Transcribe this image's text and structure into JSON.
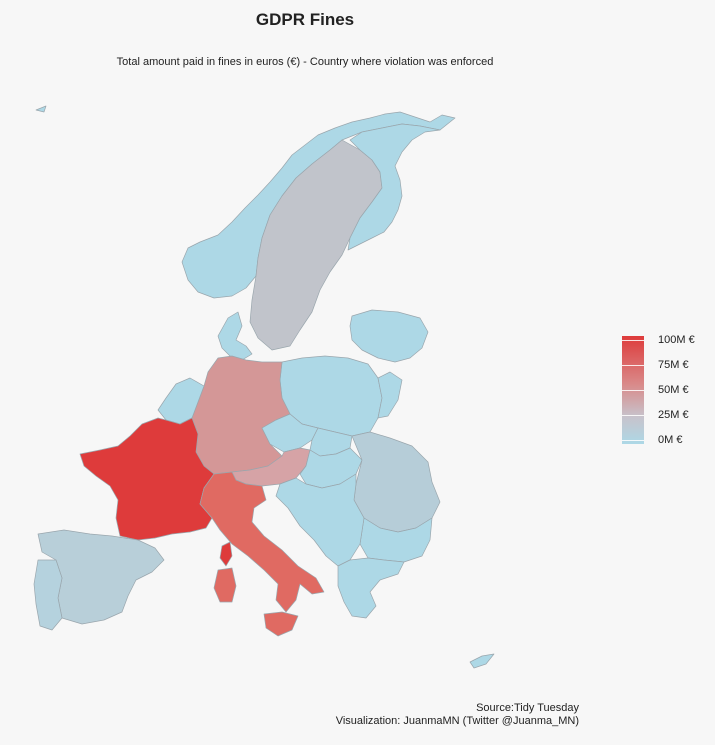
{
  "title": "GDPR Fines",
  "subtitle": "Total amount paid in fines in euros (€) - Country where violation was enforced",
  "colors": {
    "background": "#f7f7f7",
    "low": "#add8e6",
    "mid": "#c8c3cb",
    "high": "#de3b3b",
    "border": "#9aa6ad"
  },
  "legend": {
    "labels": [
      "100M €",
      "75M €",
      "50M €",
      "25M €",
      "0M €"
    ],
    "values": [
      100,
      75,
      50,
      25,
      0
    ],
    "unit": "M €"
  },
  "map_data": {
    "countries": [
      {
        "name": "France",
        "fill": "#de3b3b"
      },
      {
        "name": "Italy",
        "fill": "#e06a62"
      },
      {
        "name": "Germany",
        "fill": "#d49797"
      },
      {
        "name": "Austria",
        "fill": "#d6a3a6"
      },
      {
        "name": "Sweden",
        "fill": "#c1c4cb"
      },
      {
        "name": "Spain",
        "fill": "#b8cfd9"
      },
      {
        "name": "Portugal",
        "fill": "#b5d2de"
      },
      {
        "name": "Romania",
        "fill": "#b6cdd8"
      },
      {
        "name": "Norway",
        "fill": "#add8e6"
      },
      {
        "name": "Finland",
        "fill": "#add8e6"
      },
      {
        "name": "Poland",
        "fill": "#add8e6"
      },
      {
        "name": "Czechia",
        "fill": "#add8e6"
      },
      {
        "name": "Hungary",
        "fill": "#add8e6"
      },
      {
        "name": "Slovakia",
        "fill": "#add8e6"
      },
      {
        "name": "Greece",
        "fill": "#add8e6"
      },
      {
        "name": "Bulgaria",
        "fill": "#add8e6"
      },
      {
        "name": "Balkans",
        "fill": "#add8e6"
      },
      {
        "name": "Denmark",
        "fill": "#add8e6"
      },
      {
        "name": "Benelux",
        "fill": "#add8e6"
      },
      {
        "name": "Baltics",
        "fill": "#add8e6"
      },
      {
        "name": "Ukraine edge",
        "fill": "#add8e6"
      },
      {
        "name": "Corsica",
        "fill": "#de3b3b"
      },
      {
        "name": "Sardinia",
        "fill": "#e06a62"
      },
      {
        "name": "Sicily",
        "fill": "#e06a62"
      },
      {
        "name": "Cyprus",
        "fill": "#add8e6"
      }
    ]
  },
  "caption": {
    "source": "Source:Tidy Tuesday",
    "credit": "Visualization: JuanmaMN (Twitter @Juanma_MN)"
  }
}
